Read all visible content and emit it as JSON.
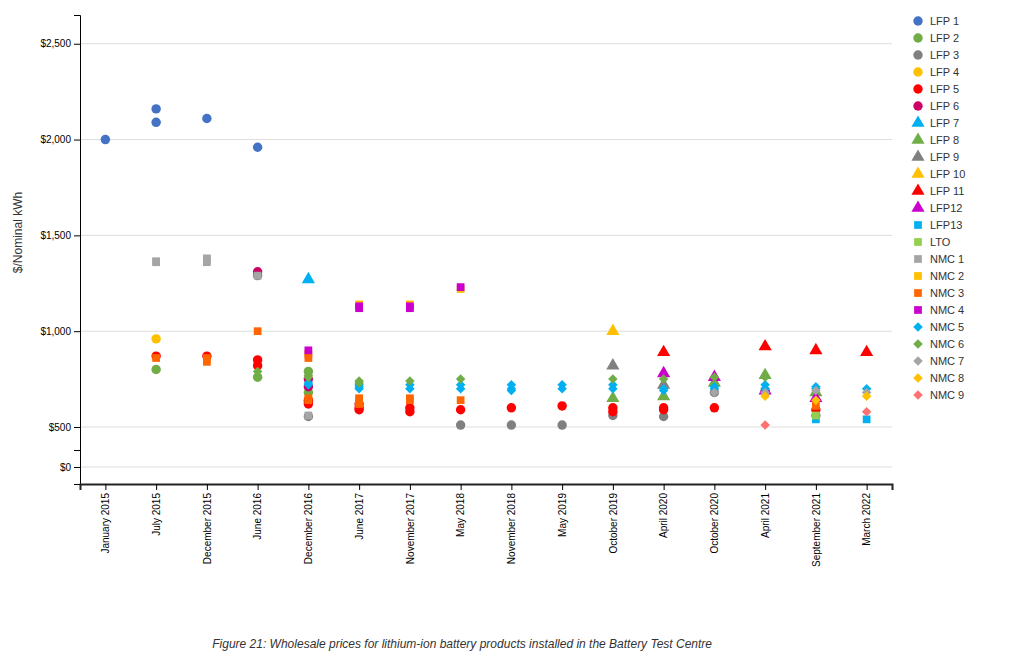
{
  "chart_data": [
    {
      "type": "scatter",
      "title": "Figure 21: Wholesale prices for lithium-ion battery products installed in the Battery Test Centre",
      "y_label": "$/Nominal kWh",
      "categories": [
        "January 2015",
        "July 2015",
        "December 2015",
        "June 2016",
        "December 2016",
        "June 2017",
        "November 2017",
        "May 2018",
        "November 2018",
        "May 2019",
        "October 2019",
        "April 2020",
        "October 2020",
        "April 2021",
        "September 2021",
        "March 2022"
      ],
      "ylim": [
        380,
        2650
      ],
      "yticks": [
        {
          "value": 500,
          "label": "$500"
        },
        {
          "value": 1000,
          "label": "$1,000"
        },
        {
          "value": 1500,
          "label": "$1,500"
        },
        {
          "value": 2000,
          "label": "$2,000"
        },
        {
          "value": 2500,
          "label": "$2,500"
        }
      ],
      "grid": true,
      "legend": "right",
      "tick_labels": "y",
      "series": [
        {
          "name": "LFP 1",
          "color": "#4472c4",
          "marker": "circle",
          "x": [
            "January 2015",
            "July 2015",
            "July 2015",
            "December 2015",
            "June 2016"
          ],
          "values": [
            2000,
            2090,
            2160,
            2110,
            1960
          ]
        },
        {
          "name": "LFP 2",
          "color": "#70ad47",
          "marker": "circle",
          "x": [
            "July 2015",
            "June 2016",
            "December 2016",
            "December 2016"
          ],
          "values": [
            800,
            760,
            790,
            680
          ]
        },
        {
          "name": "LFP 3",
          "color": "#808080",
          "marker": "circle",
          "x": [
            "June 2016",
            "December 2016",
            "May 2018",
            "November 2018",
            "May 2019",
            "October 2019",
            "April 2020",
            "October 2020",
            "April 2021",
            "September 2021"
          ],
          "values": [
            1290,
            555,
            510,
            510,
            510,
            560,
            555,
            680,
            690,
            560
          ]
        },
        {
          "name": "LFP 4",
          "color": "#ffc000",
          "marker": "circle",
          "x": [
            "July 2015"
          ],
          "values": [
            960
          ]
        },
        {
          "name": "LFP 5",
          "color": "#ff0000",
          "marker": "circle",
          "x": [
            "July 2015",
            "December 2015",
            "June 2016",
            "June 2016",
            "December 2016",
            "December 2016",
            "December 2016",
            "June 2017",
            "June 2017",
            "June 2017",
            "November 2017",
            "November 2017",
            "May 2018",
            "November 2018",
            "May 2019",
            "October 2019",
            "October 2019",
            "April 2020",
            "April 2020",
            "October 2020",
            "September 2021"
          ],
          "values": [
            870,
            870,
            850,
            820,
            640,
            630,
            620,
            620,
            600,
            590,
            600,
            580,
            590,
            600,
            610,
            600,
            580,
            600,
            590,
            600,
            590
          ]
        },
        {
          "name": "LFP 6",
          "color": "#cc0066",
          "marker": "circle",
          "x": [
            "June 2016",
            "December 2016",
            "December 2016"
          ],
          "values": [
            1310,
            750,
            710
          ]
        },
        {
          "name": "LFP 7",
          "color": "#00b0f0",
          "marker": "triangle",
          "x": [
            "December 2016"
          ],
          "values": [
            1270
          ]
        },
        {
          "name": "LFP 8",
          "color": "#70ad47",
          "marker": "triangle",
          "x": [
            "October 2019",
            "April 2020",
            "October 2020",
            "April 2021",
            "September 2021"
          ],
          "values": [
            650,
            660,
            730,
            770,
            680
          ]
        },
        {
          "name": "LFP 9",
          "color": "#808080",
          "marker": "triangle",
          "x": [
            "October 2019",
            "April 2020"
          ],
          "values": [
            820,
            720
          ]
        },
        {
          "name": "LFP 10",
          "color": "#ffc000",
          "marker": "triangle",
          "x": [
            "October 2019"
          ],
          "values": [
            1000
          ]
        },
        {
          "name": "LFP 11",
          "color": "#ff0000",
          "marker": "triangle",
          "x": [
            "April 2020",
            "April 2021",
            "September 2021",
            "March 2022"
          ],
          "values": [
            890,
            920,
            900,
            890
          ]
        },
        {
          "name": "LFP12",
          "color": "#cc00cc",
          "marker": "triangle",
          "x": [
            "April 2020",
            "October 2020",
            "April 2021",
            "September 2021"
          ],
          "values": [
            780,
            760,
            690,
            650
          ]
        },
        {
          "name": "LFP13",
          "color": "#00b0f0",
          "marker": "square",
          "x": [
            "September 2021",
            "March 2022"
          ],
          "values": [
            540,
            540
          ]
        },
        {
          "name": "LTO",
          "color": "#92d050",
          "marker": "square",
          "x": [
            "September 2021"
          ],
          "values": [
            560
          ]
        },
        {
          "name": "NMC 1",
          "color": "#a5a5a5",
          "marker": "square",
          "x": [
            "July 2015",
            "July 2015",
            "December 2015",
            "December 2015",
            "December 2015",
            "June 2016",
            "December 2016"
          ],
          "values": [
            1360,
            1365,
            1360,
            1375,
            1380,
            1290,
            560
          ]
        },
        {
          "name": "NMC 2",
          "color": "#ffc000",
          "marker": "square",
          "x": [
            "June 2017",
            "November 2017",
            "November 2017",
            "May 2018"
          ],
          "values": [
            1140,
            1140,
            1130,
            1220
          ]
        },
        {
          "name": "NMC 3",
          "color": "#ff6600",
          "marker": "square",
          "x": [
            "July 2015",
            "December 2015",
            "December 2015",
            "June 2016",
            "December 2016",
            "December 2016",
            "December 2016",
            "December 2016",
            "June 2017",
            "June 2017",
            "June 2017",
            "November 2017",
            "November 2017",
            "May 2018",
            "September 2021"
          ],
          "values": [
            860,
            860,
            840,
            1000,
            880,
            860,
            650,
            640,
            650,
            640,
            620,
            650,
            640,
            640,
            610
          ]
        },
        {
          "name": "NMC 4",
          "color": "#cc00cc",
          "marker": "square",
          "x": [
            "December 2016",
            "June 2017",
            "June 2017",
            "November 2017",
            "November 2017",
            "May 2018"
          ],
          "values": [
            900,
            1120,
            1130,
            1130,
            1120,
            1230
          ]
        },
        {
          "name": "NMC 5",
          "color": "#00b0f0",
          "marker": "diamond",
          "x": [
            "December 2016",
            "December 2016",
            "June 2017",
            "June 2017",
            "June 2017",
            "November 2017",
            "November 2017",
            "May 2018",
            "May 2018",
            "November 2018",
            "November 2018",
            "November 2018",
            "May 2019",
            "May 2019",
            "October 2019",
            "October 2019",
            "April 2020",
            "April 2020",
            "October 2020",
            "October 2020",
            "April 2021",
            "April 2021",
            "September 2021",
            "September 2021",
            "March 2022"
          ],
          "values": [
            730,
            720,
            720,
            710,
            700,
            720,
            700,
            720,
            700,
            720,
            700,
            690,
            720,
            700,
            720,
            700,
            700,
            690,
            710,
            700,
            720,
            700,
            710,
            700,
            700
          ]
        },
        {
          "name": "NMC 6",
          "color": "#70ad47",
          "marker": "diamond",
          "x": [
            "June 2016",
            "December 2016",
            "December 2016",
            "June 2017",
            "June 2017",
            "November 2017",
            "May 2018",
            "October 2019",
            "April 2020",
            "October 2020",
            "April 2021"
          ],
          "values": [
            790,
            770,
            760,
            740,
            730,
            740,
            750,
            750,
            750,
            760,
            760
          ]
        },
        {
          "name": "NMC 7",
          "color": "#a5a5a5",
          "marker": "diamond",
          "x": [
            "October 2020",
            "April 2021",
            "April 2021",
            "September 2021",
            "March 2022"
          ],
          "values": [
            680,
            680,
            670,
            690,
            680
          ]
        },
        {
          "name": "NMC 8",
          "color": "#ffc000",
          "marker": "diamond",
          "x": [
            "April 2021",
            "September 2021",
            "March 2022"
          ],
          "values": [
            660,
            640,
            660
          ]
        },
        {
          "name": "NMC 9",
          "color": "#ff7070",
          "marker": "diamond",
          "x": [
            "April 2021",
            "March 2022"
          ],
          "values": [
            510,
            580
          ]
        }
      ]
    },
    {
      "type": "scatter",
      "categories": [
        "January 2015",
        "July 2015",
        "December 2015",
        "June 2016",
        "December 2016",
        "June 2017",
        "November 2017",
        "May 2018",
        "November 2018",
        "May 2019",
        "October 2019",
        "April 2020",
        "October 2020",
        "April 2021",
        "September 2021",
        "March 2022"
      ],
      "ylim": [
        -0.5,
        0.5
      ],
      "yticks": [
        {
          "value": 0,
          "label": "$0"
        }
      ],
      "grid": true
    }
  ]
}
